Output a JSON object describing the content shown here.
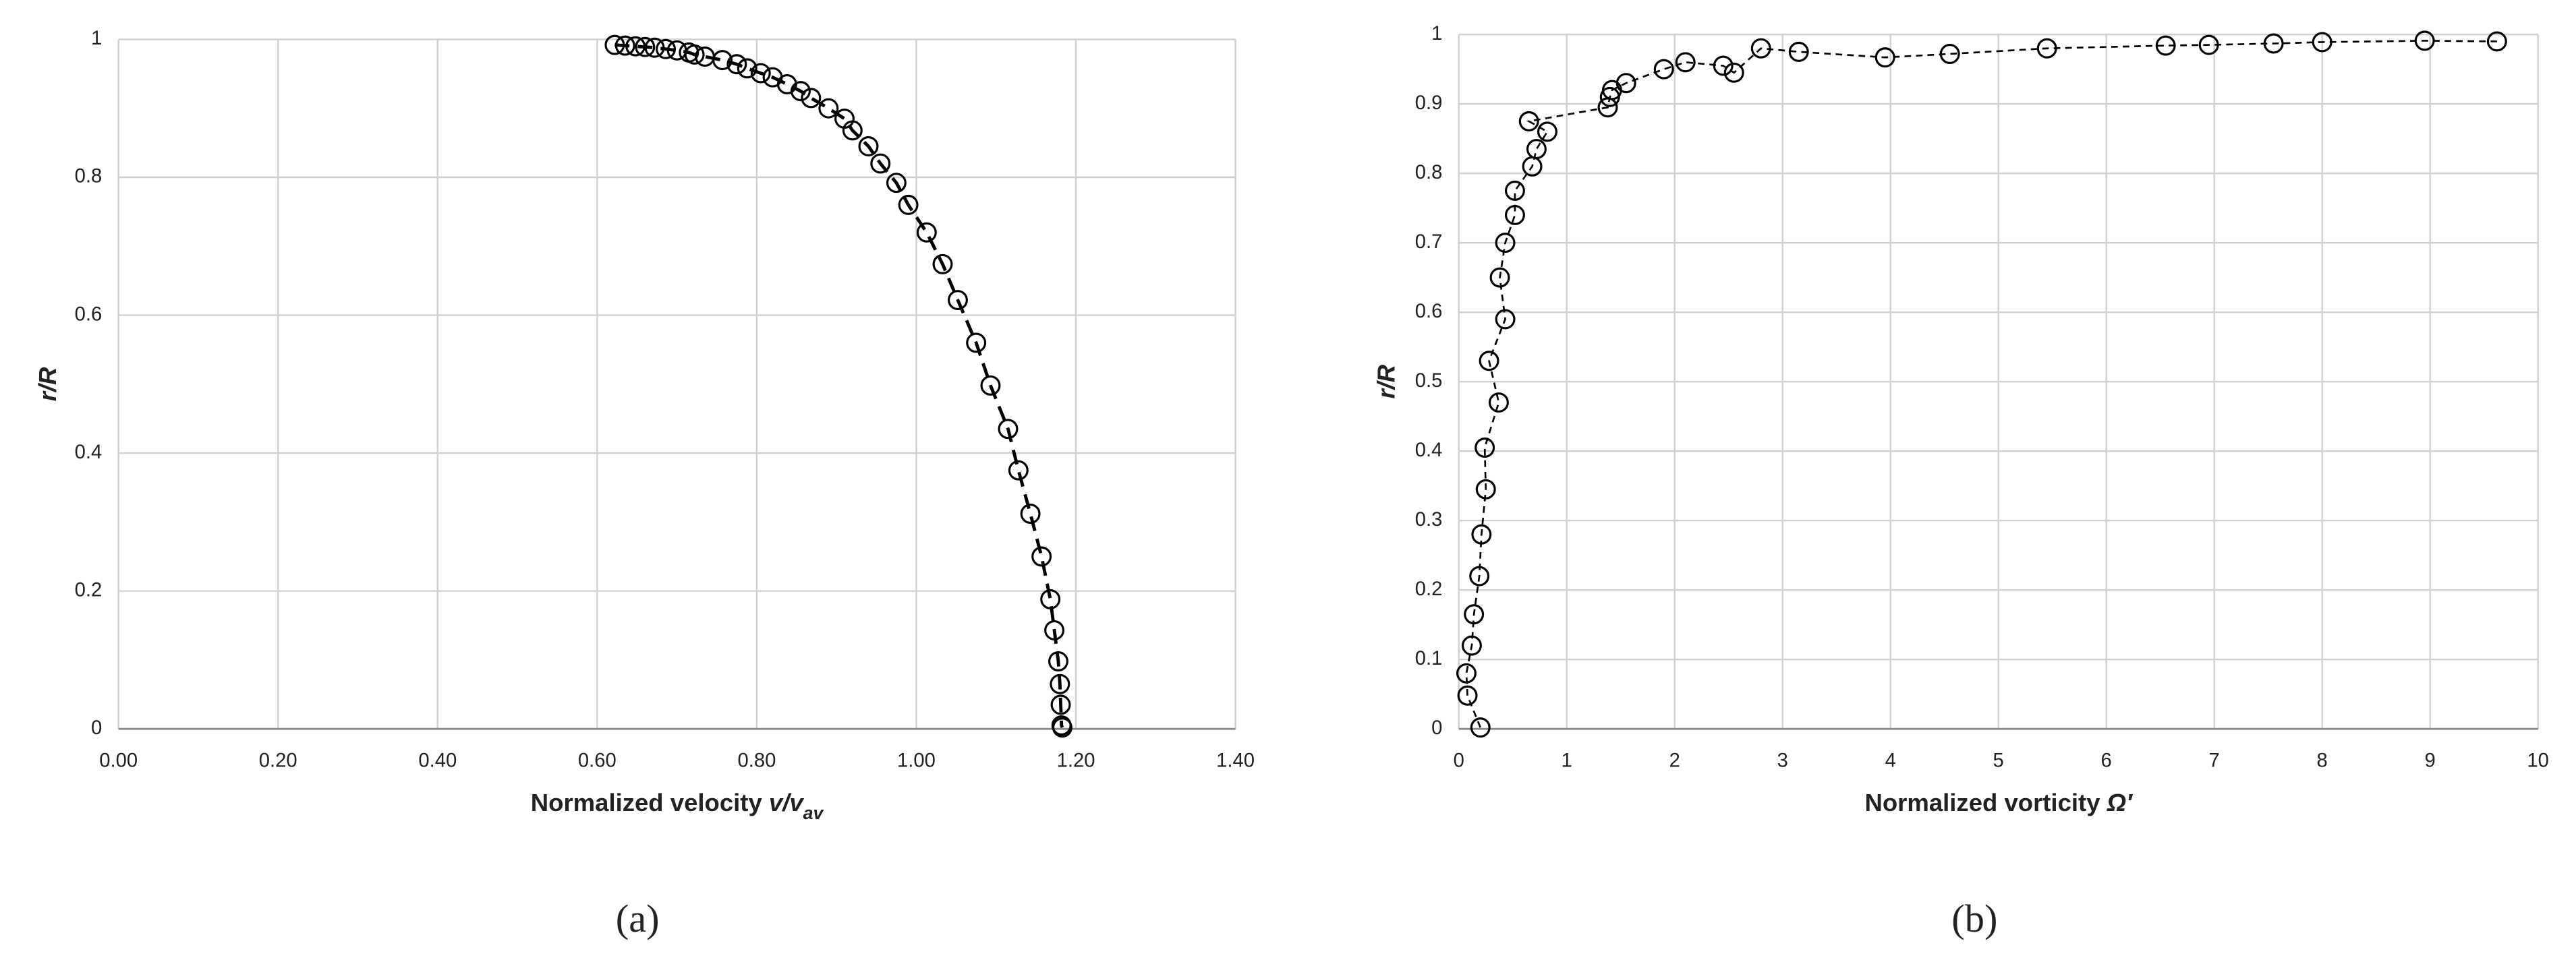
{
  "chart_data": [
    {
      "type": "scatter",
      "panel_label": "(a)",
      "xlabel": [
        "Normalized velocity ",
        "v/v",
        "av"
      ],
      "ylabel": "r/R",
      "x": [
        0.622,
        0.635,
        0.648,
        0.66,
        0.672,
        0.686,
        0.7,
        0.715,
        0.722,
        0.735,
        0.757,
        0.775,
        0.788,
        0.805,
        0.82,
        0.838,
        0.855,
        0.868,
        0.89,
        0.91,
        0.92,
        0.94,
        0.955,
        0.975,
        0.99,
        1.013,
        1.033,
        1.052,
        1.075,
        1.093,
        1.115,
        1.128,
        1.143,
        1.157,
        1.168,
        1.173,
        1.178,
        1.18,
        1.181,
        1.182,
        1.183
      ],
      "values": [
        0.992,
        0.991,
        0.99,
        0.989,
        0.988,
        0.986,
        0.984,
        0.981,
        0.978,
        0.975,
        0.97,
        0.964,
        0.958,
        0.951,
        0.945,
        0.935,
        0.925,
        0.915,
        0.9,
        0.885,
        0.868,
        0.845,
        0.82,
        0.792,
        0.76,
        0.72,
        0.674,
        0.622,
        0.56,
        0.498,
        0.435,
        0.375,
        0.312,
        0.25,
        0.188,
        0.143,
        0.098,
        0.065,
        0.035,
        0.005,
        0.002
      ],
      "color": "#000000",
      "line": "dashed",
      "grid": true,
      "xlim": [
        0,
        1.4
      ],
      "ylim": [
        0,
        1
      ],
      "xticks": [
        {
          "value": 0,
          "label": "0.00"
        },
        {
          "value": 0.2,
          "label": "0.20"
        },
        {
          "value": 0.4,
          "label": "0.40"
        },
        {
          "value": 0.6,
          "label": "0.60"
        },
        {
          "value": 0.8,
          "label": "0.80"
        },
        {
          "value": 1,
          "label": "1.00"
        },
        {
          "value": 1.2,
          "label": "1.20"
        },
        {
          "value": 1.4,
          "label": "1.40"
        }
      ],
      "yticks": [
        0,
        0.2,
        0.4,
        0.6,
        0.8,
        1
      ]
    },
    {
      "type": "scatter",
      "panel_label": "(b)",
      "xlabel": [
        "Normalized vorticity ",
        "Ω′"
      ],
      "ylabel": "r/R",
      "x": [
        0.2,
        0.08,
        0.07,
        0.12,
        0.14,
        0.19,
        0.21,
        0.25,
        0.24,
        0.37,
        0.28,
        0.43,
        0.38,
        0.43,
        0.52,
        0.52,
        0.68,
        0.72,
        0.82,
        0.65,
        1.38,
        1.4,
        1.42,
        1.55,
        1.9,
        2.1,
        2.45,
        2.55,
        2.8,
        3.15,
        3.95,
        4.55,
        5.45,
        6.55,
        6.95,
        7.55,
        8.0,
        8.95,
        9.62
      ],
      "values": [
        0.002,
        0.048,
        0.08,
        0.12,
        0.165,
        0.22,
        0.28,
        0.345,
        0.405,
        0.47,
        0.53,
        0.59,
        0.65,
        0.7,
        0.74,
        0.775,
        0.81,
        0.835,
        0.86,
        0.875,
        0.895,
        0.91,
        0.92,
        0.93,
        0.95,
        0.96,
        0.955,
        0.945,
        0.98,
        0.975,
        0.967,
        0.972,
        0.98,
        0.984,
        0.985,
        0.987,
        0.989,
        0.991,
        0.99
      ],
      "color": "#000000",
      "line": "dashed",
      "grid": true,
      "xlim": [
        0,
        10
      ],
      "ylim": [
        0,
        1
      ],
      "xticks": [
        0,
        1,
        2,
        3,
        4,
        5,
        6,
        7,
        8,
        9,
        10
      ],
      "yticks": [
        0,
        0.1,
        0.2,
        0.3,
        0.4,
        0.5,
        0.6,
        0.7,
        0.8,
        0.9,
        1
      ]
    }
  ]
}
